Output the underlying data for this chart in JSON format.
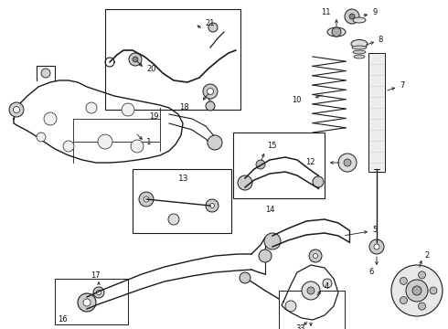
{
  "background_color": "#ffffff",
  "line_color": "#1a1a1a",
  "text_color": "#111111",
  "figsize": [
    4.9,
    3.6
  ],
  "dpi": 100,
  "xlim": [
    0,
    490
  ],
  "ylim": [
    0,
    360
  ]
}
